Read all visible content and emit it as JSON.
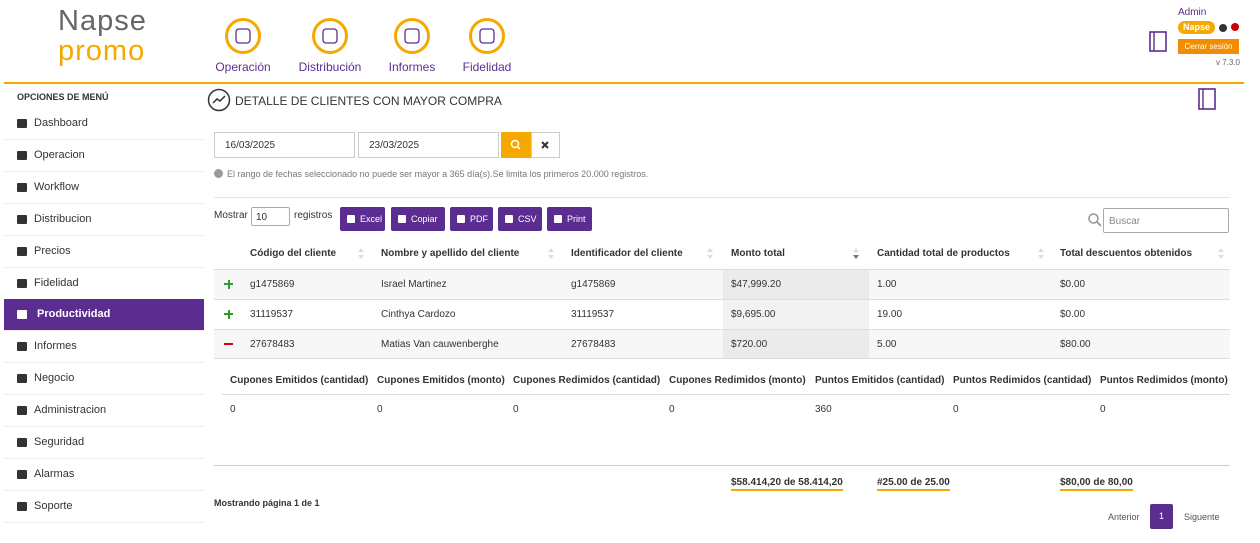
{
  "header": {
    "logo_top": "Napse",
    "logo_bottom": "promo",
    "nav": [
      "Operación",
      "Distribución",
      "Informes",
      "Fidelidad"
    ],
    "user": "Admin",
    "badge": "Napse",
    "logout": "Cerrar sesión",
    "version": "v 7.3.0"
  },
  "sidebar": {
    "title": "OPCIONES DE MENÚ",
    "items": [
      "Dashboard",
      "Operacion",
      "Workflow",
      "Distribucion",
      "Precios",
      "Fidelidad",
      "Productividad",
      "Informes",
      "Negocio",
      "Administracion",
      "Seguridad",
      "Alarmas",
      "Soporte"
    ],
    "active": 6
  },
  "page": {
    "title": "DETALLE DE CLIENTES CON MAYOR COMPRA",
    "date_from": "16/03/2025",
    "date_to": "23/03/2025",
    "notice": "El rango de fechas seleccionado no puede ser mayor a 365 día(s).Se limita los primeros 20.000 registros.",
    "show_label": "Mostrar",
    "page_size": "10",
    "records_label": "registros",
    "buttons": [
      "Excel",
      "Copiar",
      "PDF",
      "CSV",
      "Print"
    ],
    "search_placeholder": "Buscar"
  },
  "table": {
    "columns": [
      "Código del cliente",
      "Nombre y apellido del cliente",
      "Identificador del cliente",
      "Monto total",
      "Cantidad total de productos",
      "Total descuentos obtenidos"
    ],
    "rows": [
      [
        "g1475869",
        "Israel Martinez",
        "g1475869",
        "$47,999.20",
        "1.00",
        "$0.00"
      ],
      [
        "31119537",
        "Cinthya Cardozo",
        "31119537",
        "$9,695.00",
        "19.00",
        "$0.00"
      ],
      [
        "27678483",
        "Matias Van cauwenberghe",
        "27678483",
        "$720.00",
        "5.00",
        "$80.00"
      ]
    ],
    "expanded_row": 2,
    "detail": {
      "columns": [
        "Cupones Emitidos (cantidad)",
        "Cupones Emitidos (monto)",
        "Cupones Redimidos (cantidad)",
        "Cupones Redimidos (monto)",
        "Puntos Emitidos (cantidad)",
        "Puntos Redimidos (cantidad)",
        "Puntos Redimidos (monto)"
      ],
      "values": [
        "0",
        "0",
        "0",
        "0",
        "360",
        "0",
        "0"
      ]
    },
    "totals": [
      "$58.414,20 de 58.414,20",
      "#25.00 de 25.00",
      "$80,00 de 80,00"
    ]
  },
  "footer": {
    "info": "Mostrando página 1 de 1",
    "prev": "Anterior",
    "page": "1",
    "next": "Siguente"
  }
}
